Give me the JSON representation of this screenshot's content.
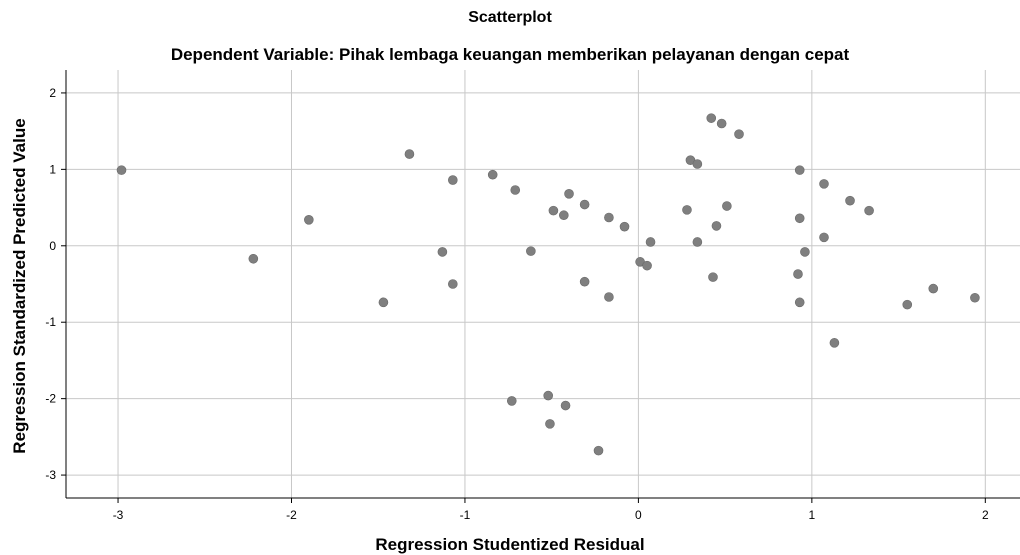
{
  "chart_data": {
    "type": "scatter",
    "title": "Scatterplot",
    "subtitle": "Dependent Variable: Pihak lembaga keuangan memberikan pelayanan dengan cepat",
    "xlabel": "Regression Studentized Residual",
    "ylabel": "Regression Standardized Predicted Value",
    "xlim": [
      -3.3,
      2.2
    ],
    "ylim": [
      -3.3,
      2.3
    ],
    "xticks": [
      -3,
      -2,
      -1,
      0,
      1,
      2
    ],
    "yticks": [
      -3,
      -2,
      -1,
      0,
      1,
      2
    ],
    "grid": true,
    "marker_color": "#7f7f7f",
    "grid_color": "#c8c8c8",
    "points": [
      {
        "x": -2.98,
        "y": 0.99
      },
      {
        "x": -2.22,
        "y": -0.17
      },
      {
        "x": -1.9,
        "y": 0.34
      },
      {
        "x": -1.47,
        "y": -0.74
      },
      {
        "x": -1.32,
        "y": 1.2
      },
      {
        "x": -1.13,
        "y": -0.08
      },
      {
        "x": -1.07,
        "y": 0.86
      },
      {
        "x": -1.07,
        "y": -0.5
      },
      {
        "x": -0.84,
        "y": 0.93
      },
      {
        "x": -0.73,
        "y": -2.03
      },
      {
        "x": -0.71,
        "y": 0.73
      },
      {
        "x": -0.62,
        "y": -0.07
      },
      {
        "x": -0.52,
        "y": -1.96
      },
      {
        "x": -0.51,
        "y": -2.33
      },
      {
        "x": -0.49,
        "y": 0.46
      },
      {
        "x": -0.43,
        "y": 0.4
      },
      {
        "x": -0.42,
        "y": -2.09
      },
      {
        "x": -0.4,
        "y": 0.68
      },
      {
        "x": -0.31,
        "y": 0.54
      },
      {
        "x": -0.31,
        "y": -0.47
      },
      {
        "x": -0.23,
        "y": -2.68
      },
      {
        "x": -0.17,
        "y": 0.37
      },
      {
        "x": -0.17,
        "y": -0.67
      },
      {
        "x": -0.08,
        "y": 0.25
      },
      {
        "x": 0.01,
        "y": -0.21
      },
      {
        "x": 0.05,
        "y": -0.26
      },
      {
        "x": 0.07,
        "y": 0.05
      },
      {
        "x": 0.28,
        "y": 0.47
      },
      {
        "x": 0.3,
        "y": 1.12
      },
      {
        "x": 0.34,
        "y": 1.07
      },
      {
        "x": 0.34,
        "y": 0.05
      },
      {
        "x": 0.42,
        "y": 1.67
      },
      {
        "x": 0.43,
        "y": -0.41
      },
      {
        "x": 0.45,
        "y": 0.26
      },
      {
        "x": 0.48,
        "y": 1.6
      },
      {
        "x": 0.51,
        "y": 0.52
      },
      {
        "x": 0.58,
        "y": 1.46
      },
      {
        "x": 0.92,
        "y": -0.37
      },
      {
        "x": 0.93,
        "y": 0.99
      },
      {
        "x": 0.93,
        "y": 0.36
      },
      {
        "x": 0.93,
        "y": -0.74
      },
      {
        "x": 0.96,
        "y": -0.08
      },
      {
        "x": 1.07,
        "y": 0.81
      },
      {
        "x": 1.07,
        "y": 0.11
      },
      {
        "x": 1.13,
        "y": -1.27
      },
      {
        "x": 1.22,
        "y": 0.59
      },
      {
        "x": 1.33,
        "y": 0.46
      },
      {
        "x": 1.55,
        "y": -0.77
      },
      {
        "x": 1.7,
        "y": -0.56
      },
      {
        "x": 1.94,
        "y": -0.68
      }
    ]
  }
}
